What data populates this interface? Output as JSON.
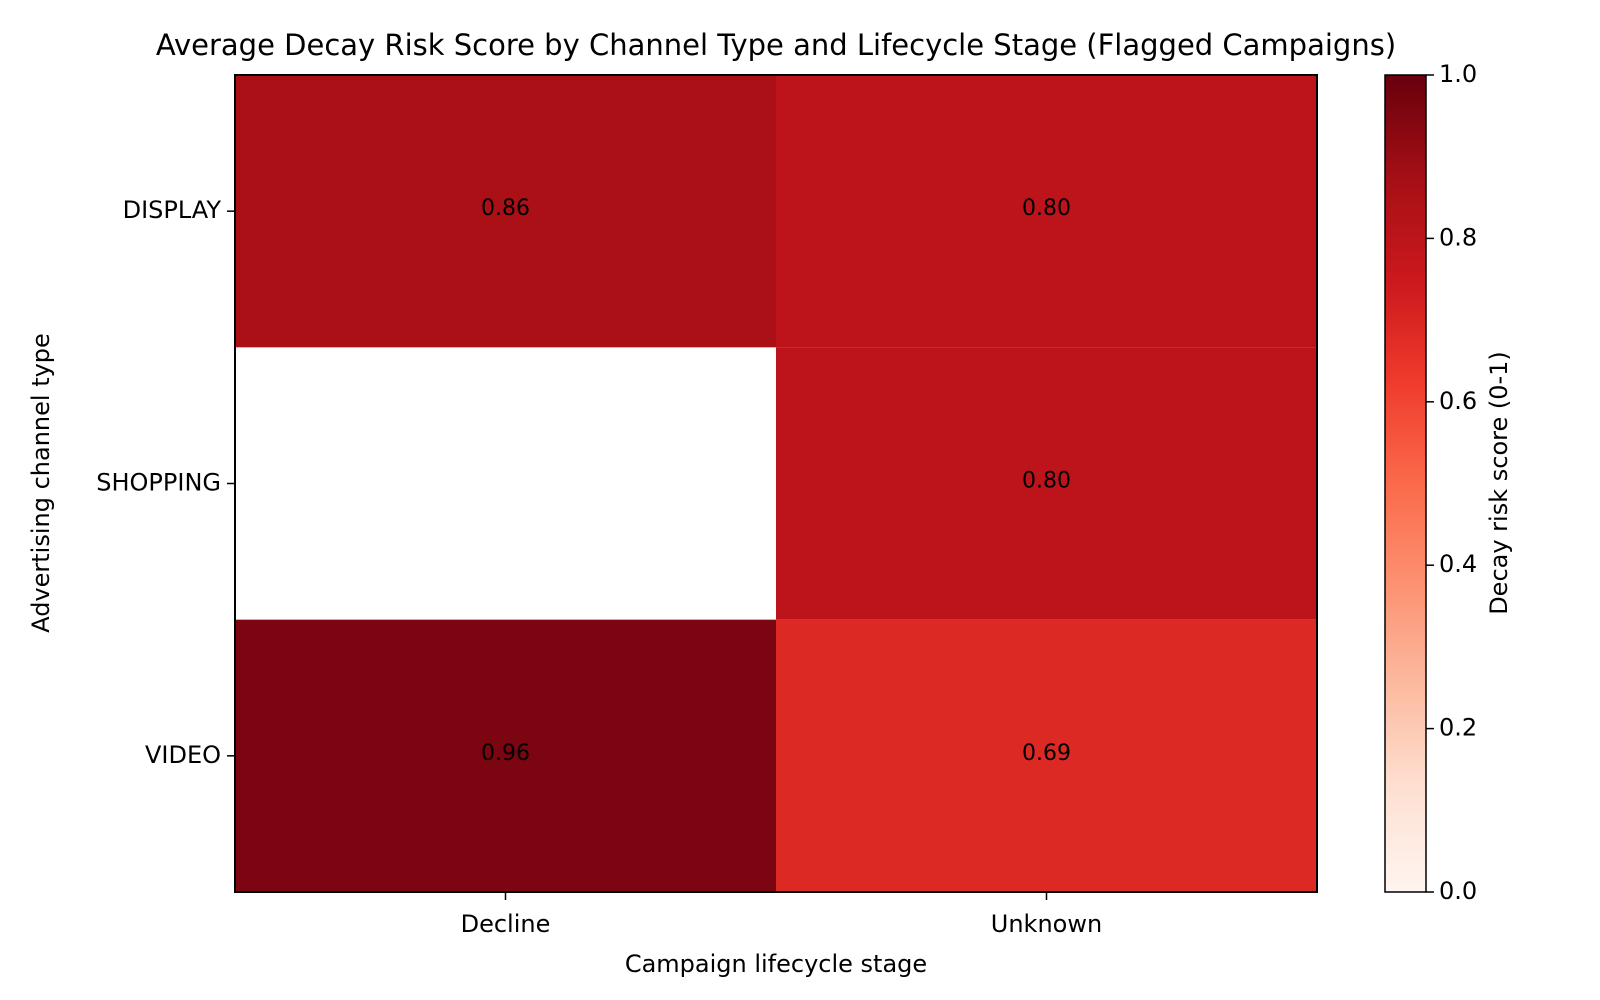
{
  "chart_data": {
    "type": "heatmap",
    "title": "Average Decay Risk Score by Channel Type and Lifecycle Stage (Flagged Campaigns)",
    "x_label": "Campaign lifecycle stage",
    "y_label": "Advertising channel type",
    "x_categories": [
      "Decline",
      "Unknown"
    ],
    "y_categories": [
      "DISPLAY",
      "SHOPPING",
      "VIDEO"
    ],
    "values": [
      [
        0.86,
        0.8
      ],
      [
        null,
        0.8
      ],
      [
        0.96,
        0.69
      ]
    ],
    "value_labels": [
      [
        "0.86",
        "0.80"
      ],
      [
        null,
        "0.80"
      ],
      [
        "0.96",
        "0.69"
      ]
    ],
    "colorbar_label": "Decay risk score (0-1)",
    "clim": [
      0,
      1
    ],
    "cticks": [
      {
        "value": 0,
        "label": "0.0"
      },
      {
        "value": 0.2,
        "label": "0.2"
      },
      {
        "value": 0.4,
        "label": "0.4"
      },
      {
        "value": 0.6,
        "label": "0.6"
      },
      {
        "value": 0.8,
        "label": "0.8"
      },
      {
        "value": 1,
        "label": "1.0"
      }
    ],
    "colorscale": [
      "#fff5f0",
      "#fee0d2",
      "#fcbba1",
      "#fc9272",
      "#fb6a4a",
      "#ef3b2c",
      "#cb181d",
      "#a50f15",
      "#67000d"
    ]
  }
}
